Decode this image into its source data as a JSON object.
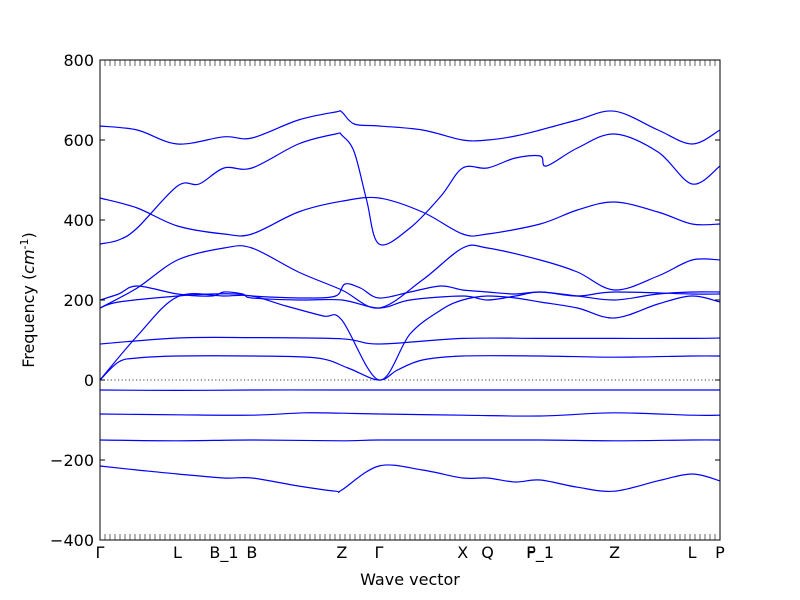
{
  "chart_data": {
    "type": "line",
    "title": "",
    "xlabel": "Wave vector",
    "ylabel": "Frequency ($cm^{-1}$)",
    "ylim": [
      -400,
      800
    ],
    "yticks": [
      -400,
      -200,
      0,
      200,
      400,
      600,
      800
    ],
    "xlim": [
      0,
      1
    ],
    "grid": false,
    "line_color": "#0000ff",
    "high_symmetry_points": [
      {
        "label": "Γ",
        "x": 0.0
      },
      {
        "label": "L",
        "x": 0.125
      },
      {
        "label": "B_1",
        "x": 0.2
      },
      {
        "label": "B",
        "x": 0.245
      },
      {
        "label": "Z",
        "x": 0.39
      },
      {
        "label": "Γ",
        "x": 0.45
      },
      {
        "label": "X",
        "x": 0.585
      },
      {
        "label": "Q",
        "x": 0.625
      },
      {
        "label": "F",
        "x": 0.695
      },
      {
        "label": "P_1",
        "x": 0.71
      },
      {
        "label": "Z",
        "x": 0.83
      },
      {
        "label": "L",
        "x": 0.955
      },
      {
        "label": "P",
        "x": 1.0
      }
    ],
    "series": [
      {
        "values": [
          [
            0,
            -215
          ],
          [
            0.06,
            -225
          ],
          [
            0.125,
            -235
          ],
          [
            0.2,
            -245
          ],
          [
            0.245,
            -245
          ],
          [
            0.32,
            -265
          ],
          [
            0.38,
            -278
          ],
          [
            0.39,
            -275
          ],
          [
            0.45,
            -215
          ],
          [
            0.52,
            -225
          ],
          [
            0.585,
            -245
          ],
          [
            0.625,
            -245
          ],
          [
            0.67,
            -255
          ],
          [
            0.71,
            -250
          ],
          [
            0.77,
            -268
          ],
          [
            0.83,
            -278
          ],
          [
            0.9,
            -252
          ],
          [
            0.955,
            -235
          ],
          [
            1,
            -252
          ]
        ]
      },
      {
        "values": [
          [
            0,
            -150
          ],
          [
            0.125,
            -152
          ],
          [
            0.245,
            -150
          ],
          [
            0.39,
            -152
          ],
          [
            0.45,
            -150
          ],
          [
            0.585,
            -150
          ],
          [
            0.71,
            -150
          ],
          [
            0.83,
            -152
          ],
          [
            0.955,
            -150
          ],
          [
            1,
            -150
          ]
        ]
      },
      {
        "values": [
          [
            0,
            -85
          ],
          [
            0.125,
            -87
          ],
          [
            0.245,
            -88
          ],
          [
            0.33,
            -82
          ],
          [
            0.39,
            -83
          ],
          [
            0.45,
            -85
          ],
          [
            0.585,
            -88
          ],
          [
            0.71,
            -90
          ],
          [
            0.83,
            -82
          ],
          [
            0.955,
            -88
          ],
          [
            1,
            -88
          ]
        ]
      },
      {
        "values": [
          [
            0,
            -25
          ],
          [
            0.125,
            -26
          ],
          [
            0.245,
            -25
          ],
          [
            0.39,
            -25
          ],
          [
            0.45,
            -25
          ],
          [
            0.585,
            -25
          ],
          [
            0.71,
            -25
          ],
          [
            0.83,
            -25
          ],
          [
            0.955,
            -25
          ],
          [
            1,
            -25
          ]
        ]
      },
      {
        "values": [
          [
            0,
            0
          ],
          [
            0.03,
            45
          ],
          [
            0.06,
            55
          ],
          [
            0.125,
            60
          ],
          [
            0.245,
            60
          ],
          [
            0.35,
            55
          ],
          [
            0.4,
            30
          ],
          [
            0.45,
            0
          ],
          [
            0.48,
            25
          ],
          [
            0.52,
            50
          ],
          [
            0.585,
            60
          ],
          [
            0.71,
            60
          ],
          [
            0.83,
            57
          ],
          [
            0.955,
            60
          ],
          [
            1,
            60
          ]
        ]
      },
      {
        "values": [
          [
            0,
            0
          ],
          [
            0.06,
            110
          ],
          [
            0.125,
            208
          ],
          [
            0.2,
            210
          ],
          [
            0.245,
            210
          ],
          [
            0.3,
            185
          ],
          [
            0.36,
            160
          ],
          [
            0.39,
            150
          ],
          [
            0.45,
            0
          ],
          [
            0.5,
            115
          ],
          [
            0.55,
            175
          ],
          [
            0.585,
            200
          ],
          [
            0.625,
            210
          ],
          [
            0.67,
            205
          ],
          [
            0.71,
            195
          ],
          [
            0.77,
            180
          ],
          [
            0.83,
            155
          ],
          [
            0.9,
            190
          ],
          [
            0.955,
            210
          ],
          [
            1,
            195
          ]
        ]
      },
      {
        "values": [
          [
            0,
            90
          ],
          [
            0.125,
            105
          ],
          [
            0.245,
            106
          ],
          [
            0.39,
            103
          ],
          [
            0.45,
            90
          ],
          [
            0.585,
            104
          ],
          [
            0.71,
            104
          ],
          [
            0.83,
            104
          ],
          [
            0.955,
            104
          ],
          [
            1,
            105
          ]
        ]
      },
      {
        "values": [
          [
            0,
            180
          ],
          [
            0.03,
            195
          ],
          [
            0.125,
            210
          ],
          [
            0.18,
            215
          ],
          [
            0.22,
            215
          ],
          [
            0.245,
            210
          ],
          [
            0.33,
            205
          ],
          [
            0.38,
            210
          ],
          [
            0.395,
            240
          ],
          [
            0.42,
            230
          ],
          [
            0.45,
            205
          ],
          [
            0.5,
            220
          ],
          [
            0.55,
            235
          ],
          [
            0.585,
            225
          ],
          [
            0.625,
            220
          ],
          [
            0.67,
            215
          ],
          [
            0.71,
            220
          ],
          [
            0.77,
            210
          ],
          [
            0.83,
            200
          ],
          [
            0.9,
            215
          ],
          [
            0.955,
            220
          ],
          [
            1,
            220
          ]
        ]
      },
      {
        "values": [
          [
            0,
            200
          ],
          [
            0.03,
            215
          ],
          [
            0.06,
            235
          ],
          [
            0.125,
            215
          ],
          [
            0.18,
            210
          ],
          [
            0.2,
            220
          ],
          [
            0.23,
            215
          ],
          [
            0.245,
            205
          ],
          [
            0.32,
            200
          ],
          [
            0.39,
            200
          ],
          [
            0.45,
            180
          ],
          [
            0.5,
            200
          ],
          [
            0.585,
            210
          ],
          [
            0.625,
            200
          ],
          [
            0.67,
            210
          ],
          [
            0.71,
            220
          ],
          [
            0.77,
            210
          ],
          [
            0.83,
            220
          ],
          [
            0.955,
            215
          ],
          [
            1,
            215
          ]
        ]
      },
      {
        "values": [
          [
            0,
            180
          ],
          [
            0.06,
            230
          ],
          [
            0.125,
            300
          ],
          [
            0.2,
            330
          ],
          [
            0.245,
            330
          ],
          [
            0.32,
            270
          ],
          [
            0.39,
            225
          ],
          [
            0.45,
            180
          ],
          [
            0.52,
            250
          ],
          [
            0.585,
            330
          ],
          [
            0.625,
            330
          ],
          [
            0.71,
            300
          ],
          [
            0.77,
            270
          ],
          [
            0.83,
            225
          ],
          [
            0.9,
            260
          ],
          [
            0.955,
            300
          ],
          [
            1,
            300
          ]
        ]
      },
      {
        "values": [
          [
            0,
            340
          ],
          [
            0.03,
            350
          ],
          [
            0.06,
            380
          ],
          [
            0.125,
            485
          ],
          [
            0.16,
            490
          ],
          [
            0.2,
            530
          ],
          [
            0.245,
            530
          ],
          [
            0.32,
            590
          ],
          [
            0.38,
            615
          ],
          [
            0.39,
            612
          ],
          [
            0.41,
            570
          ],
          [
            0.43,
            450
          ],
          [
            0.45,
            340
          ],
          [
            0.5,
            380
          ],
          [
            0.55,
            460
          ],
          [
            0.585,
            530
          ],
          [
            0.625,
            530
          ],
          [
            0.67,
            555
          ],
          [
            0.71,
            560
          ],
          [
            0.72,
            535
          ],
          [
            0.77,
            580
          ],
          [
            0.83,
            615
          ],
          [
            0.9,
            570
          ],
          [
            0.955,
            490
          ],
          [
            1,
            535
          ]
        ]
      },
      {
        "values": [
          [
            0,
            455
          ],
          [
            0.06,
            430
          ],
          [
            0.125,
            385
          ],
          [
            0.2,
            365
          ],
          [
            0.245,
            365
          ],
          [
            0.32,
            420
          ],
          [
            0.39,
            447
          ],
          [
            0.45,
            455
          ],
          [
            0.52,
            420
          ],
          [
            0.585,
            365
          ],
          [
            0.625,
            365
          ],
          [
            0.71,
            390
          ],
          [
            0.77,
            425
          ],
          [
            0.83,
            445
          ],
          [
            0.9,
            420
          ],
          [
            0.955,
            390
          ],
          [
            1,
            390
          ]
        ]
      },
      {
        "values": [
          [
            0,
            635
          ],
          [
            0.06,
            625
          ],
          [
            0.125,
            590
          ],
          [
            0.2,
            608
          ],
          [
            0.245,
            605
          ],
          [
            0.32,
            650
          ],
          [
            0.38,
            670
          ],
          [
            0.39,
            670
          ],
          [
            0.41,
            640
          ],
          [
            0.45,
            635
          ],
          [
            0.52,
            625
          ],
          [
            0.585,
            600
          ],
          [
            0.625,
            600
          ],
          [
            0.67,
            610
          ],
          [
            0.71,
            625
          ],
          [
            0.77,
            650
          ],
          [
            0.83,
            672
          ],
          [
            0.9,
            625
          ],
          [
            0.955,
            590
          ],
          [
            1,
            625
          ]
        ]
      }
    ]
  }
}
